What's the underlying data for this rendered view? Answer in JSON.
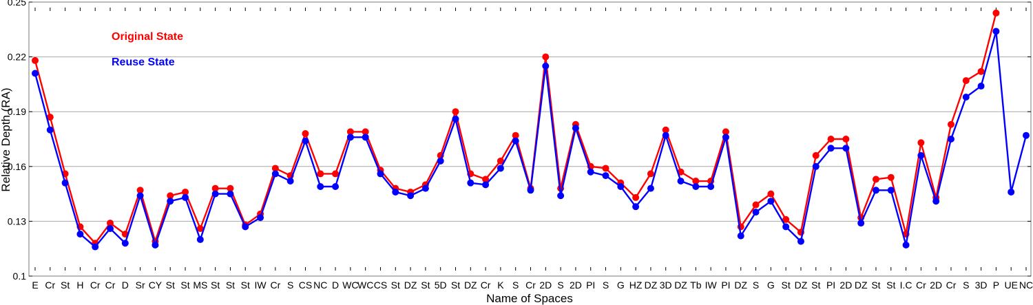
{
  "chart_data": {
    "type": "line",
    "xlabel": "Name of Spaces",
    "ylabel": "Relative Depth (RA)",
    "ylim": [
      0.1,
      0.25
    ],
    "yticks": [
      "0.1",
      "0.13",
      "0.16",
      "0.19",
      "0.22",
      "0.25"
    ],
    "grid": "horizontal",
    "legend_position": "top-left",
    "categories": [
      "E",
      "Cr",
      "St",
      "H",
      "Cr",
      "Cr",
      "D",
      "Sr",
      "CY",
      "St",
      "St",
      "MS",
      "St",
      "St",
      "St",
      "IW",
      "Cr",
      "S",
      "CS",
      "NC",
      "D",
      "WC",
      "WC",
      "CS",
      "St",
      "DZ",
      "St",
      "5D",
      "St",
      "DZ",
      "Cr",
      "K",
      "S",
      "Cr",
      "2D",
      "S",
      "2D",
      "PI",
      "S",
      "G",
      "HZ",
      "DZ",
      "3D",
      "DZ",
      "Tb",
      "IW",
      "PI",
      "DZ",
      "S",
      "G",
      "St",
      "DZ",
      "St",
      "PI",
      "2D",
      "DZ",
      "St",
      "St",
      "I.C",
      "Cr",
      "2D",
      "Cr",
      "S",
      "3D",
      "P",
      "UE",
      "NC"
    ],
    "series": [
      {
        "name": "Original State",
        "color": "#ff0000",
        "values": [
          0.218,
          0.187,
          0.156,
          0.127,
          0.118,
          0.129,
          0.123,
          0.147,
          0.119,
          0.144,
          0.146,
          0.126,
          0.148,
          0.148,
          0.128,
          0.134,
          0.159,
          0.155,
          0.178,
          0.156,
          0.156,
          0.179,
          0.179,
          0.158,
          0.148,
          0.146,
          0.15,
          0.166,
          0.19,
          0.156,
          0.153,
          0.163,
          0.177,
          0.148,
          0.22,
          0.148,
          0.183,
          0.16,
          0.159,
          0.151,
          0.143,
          0.156,
          0.18,
          0.157,
          0.152,
          0.152,
          0.179,
          0.127,
          0.139,
          0.145,
          0.131,
          0.124,
          0.166,
          0.175,
          0.175,
          0.132,
          0.153,
          0.154,
          0.123,
          0.173,
          0.143,
          0.183,
          0.207,
          0.212,
          0.244,
          null,
          null
        ]
      },
      {
        "name": "Reuse State",
        "color": "#0000ff",
        "values": [
          0.211,
          0.18,
          0.151,
          0.123,
          0.116,
          0.126,
          0.118,
          0.144,
          0.117,
          0.141,
          0.143,
          0.12,
          0.145,
          0.145,
          0.127,
          0.132,
          0.156,
          0.152,
          0.174,
          0.149,
          0.149,
          0.176,
          0.176,
          0.156,
          0.146,
          0.144,
          0.148,
          0.163,
          0.186,
          0.151,
          0.15,
          0.159,
          0.174,
          0.147,
          0.215,
          0.144,
          0.181,
          0.157,
          0.155,
          0.149,
          0.138,
          0.148,
          0.177,
          0.152,
          0.149,
          0.149,
          0.176,
          0.122,
          0.135,
          0.141,
          0.127,
          0.119,
          0.16,
          0.17,
          0.17,
          0.129,
          0.147,
          0.147,
          0.117,
          0.166,
          0.141,
          0.175,
          0.198,
          0.204,
          0.234,
          0.146,
          0.177
        ]
      }
    ]
  }
}
